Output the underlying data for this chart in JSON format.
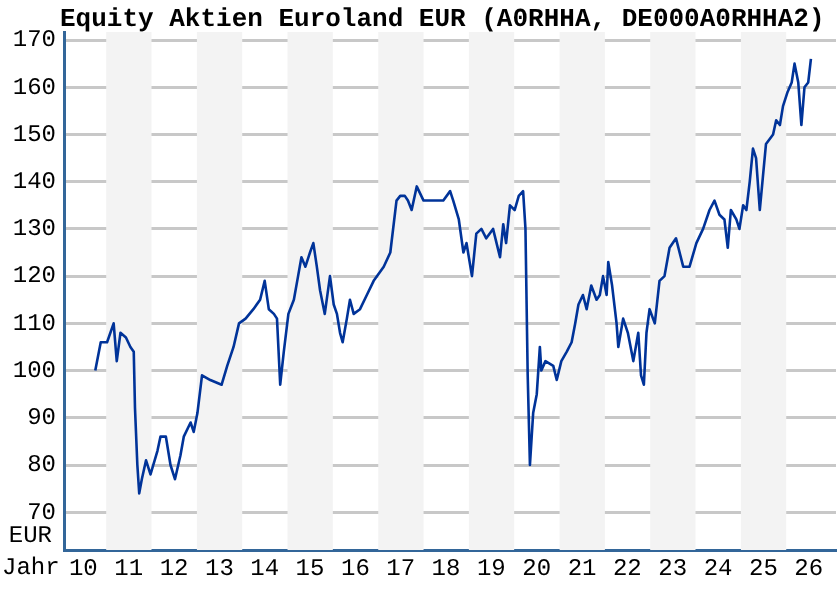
{
  "chart_data": {
    "type": "line",
    "title": "Equity Aktien Euroland EUR (A0RHHA, DE000A0RHHA2)",
    "xlabel": "Jahr",
    "ylabel": "EUR",
    "xlim": [
      "2010-01-26",
      "2027-02-06"
    ],
    "ylim": [
      62,
      171.7
    ],
    "xticks": [
      {
        "value": "2010-07-01",
        "label": "10"
      },
      {
        "value": "2011-07-01",
        "label": "11"
      },
      {
        "value": "2012-07-01",
        "label": "12"
      },
      {
        "value": "2013-07-01",
        "label": "13"
      },
      {
        "value": "2014-07-01",
        "label": "14"
      },
      {
        "value": "2015-07-01",
        "label": "15"
      },
      {
        "value": "2016-07-01",
        "label": "16"
      },
      {
        "value": "2017-07-01",
        "label": "17"
      },
      {
        "value": "2018-07-01",
        "label": "18"
      },
      {
        "value": "2019-07-01",
        "label": "19"
      },
      {
        "value": "2020-07-01",
        "label": "20"
      },
      {
        "value": "2021-07-01",
        "label": "21"
      },
      {
        "value": "2022-07-01",
        "label": "22"
      },
      {
        "value": "2023-07-01",
        "label": "23"
      },
      {
        "value": "2024-07-01",
        "label": "24"
      },
      {
        "value": "2025-07-01",
        "label": "25"
      },
      {
        "value": "2026-07-01",
        "label": "26"
      }
    ],
    "yticks": [
      70,
      80,
      90,
      100,
      110,
      120,
      130,
      140,
      150,
      160,
      170
    ],
    "grid": "y",
    "legend": false,
    "marker": "none",
    "line_style": "solid",
    "bands": [
      {
        "axis": "x",
        "from": "2011-01-01",
        "to": "2012-01-01",
        "color": "#f3f3f3"
      },
      {
        "axis": "x",
        "from": "2013-01-01",
        "to": "2014-01-01",
        "color": "#f3f3f3"
      },
      {
        "axis": "x",
        "from": "2015-01-01",
        "to": "2016-01-01",
        "color": "#f3f3f3"
      },
      {
        "axis": "x",
        "from": "2017-01-01",
        "to": "2018-01-01",
        "color": "#f3f3f3"
      },
      {
        "axis": "x",
        "from": "2019-01-01",
        "to": "2020-01-01",
        "color": "#f3f3f3"
      },
      {
        "axis": "x",
        "from": "2021-01-01",
        "to": "2022-01-01",
        "color": "#f3f3f3"
      },
      {
        "axis": "x",
        "from": "2023-01-01",
        "to": "2024-01-01",
        "color": "#f3f3f3"
      },
      {
        "axis": "x",
        "from": "2025-01-01",
        "to": "2026-01-01",
        "color": "#f3f3f3"
      }
    ],
    "series": [
      {
        "color": "#003399",
        "x": [
          "2010-10-05",
          "2010-11-18",
          "2011-01-08",
          "2011-03-02",
          "2011-03-27",
          "2011-04-26",
          "2011-06-09",
          "2011-07-15",
          "2011-08-11",
          "2011-08-21",
          "2011-09-09",
          "2011-09-24",
          "2011-10-15",
          "2011-11-18",
          "2011-12-24",
          "2012-02-18",
          "2012-03-13",
          "2012-04-26",
          "2012-06-02",
          "2012-07-08",
          "2012-08-21",
          "2012-09-17",
          "2012-11-11",
          "2012-12-06",
          "2013-01-05",
          "2013-02-11",
          "2013-04-19",
          "2013-07-19",
          "2013-09-02",
          "2013-10-23",
          "2013-12-06",
          "2014-01-28",
          "2014-04-01",
          "2014-05-25",
          "2014-07-01",
          "2014-08-03",
          "2014-09-13",
          "2014-10-08",
          "2014-11-03",
          "2014-12-02",
          "2015-01-08",
          "2015-02-21",
          "2015-03-27",
          "2015-04-23",
          "2015-05-25",
          "2015-07-01",
          "2015-07-28",
          "2015-08-25",
          "2015-09-20",
          "2015-10-28",
          "2015-12-09",
          "2016-01-08",
          "2016-02-03",
          "2016-02-28",
          "2016-03-20",
          "2016-04-23",
          "2016-05-18",
          "2016-06-17",
          "2016-08-07",
          "2016-10-01",
          "2016-11-25",
          "2017-02-14",
          "2017-04-08",
          "2017-05-28",
          "2017-06-27",
          "2017-08-03",
          "2017-08-28",
          "2017-09-27",
          "2017-11-07",
          "2018-01-01",
          "2018-03-20",
          "2018-06-09",
          "2018-08-03",
          "2018-08-28",
          "2018-10-12",
          "2018-11-18",
          "2018-12-13",
          "2019-01-26",
          "2019-03-02",
          "2019-04-12",
          "2019-05-21",
          "2019-07-15",
          "2019-09-09",
          "2019-10-05",
          "2019-10-28",
          "2019-11-28",
          "2020-01-05",
          "2020-02-07",
          "2020-03-13",
          "2020-04-01",
          "2020-04-19",
          "2020-05-07",
          "2020-06-02",
          "2020-07-01",
          "2020-07-26",
          "2020-08-07",
          "2020-09-09",
          "2020-11-11",
          "2020-12-09",
          "2021-01-15",
          "2021-02-28",
          "2021-04-08",
          "2021-05-07",
          "2021-06-02",
          "2021-07-08",
          "2021-08-07",
          "2021-09-13",
          "2021-10-26",
          "2021-11-21",
          "2021-12-17",
          "2022-01-15",
          "2022-01-28",
          "2022-02-28",
          "2022-04-05",
          "2022-04-19",
          "2022-05-28",
          "2022-07-05",
          "2022-08-18",
          "2022-09-27",
          "2022-10-19",
          "2022-11-11",
          "2022-12-02",
          "2022-12-27",
          "2023-02-07",
          "2023-03-17",
          "2023-04-26",
          "2023-06-06",
          "2023-07-28",
          "2023-09-24",
          "2023-11-14",
          "2024-01-08",
          "2024-03-02",
          "2024-04-23",
          "2024-06-02",
          "2024-07-12",
          "2024-08-21",
          "2024-09-17",
          "2024-10-12",
          "2024-11-25",
          "2024-12-20",
          "2025-01-19",
          "2025-02-14",
          "2025-03-13",
          "2025-04-08",
          "2025-05-03",
          "2025-06-02",
          "2025-06-27",
          "2025-07-22",
          "2025-09-17",
          "2025-10-12",
          "2025-11-11",
          "2025-12-06",
          "2026-01-12",
          "2026-02-14",
          "2026-03-09",
          "2026-04-08",
          "2026-05-03",
          "2026-05-28",
          "2026-06-27",
          "2026-07-19"
        ],
        "values": [
          100,
          106,
          106,
          110,
          102,
          108,
          107,
          105,
          104,
          92,
          80,
          74,
          77,
          81,
          78,
          83,
          86,
          86,
          80,
          77,
          82,
          86,
          89,
          87,
          91,
          99,
          98,
          97,
          101,
          105,
          110,
          111,
          113,
          115,
          119,
          113,
          112,
          111,
          97,
          104,
          112,
          115,
          120,
          124,
          122,
          125,
          127,
          122,
          117,
          112,
          120,
          114,
          112,
          108,
          106,
          111,
          115,
          112,
          113,
          116,
          119,
          122,
          125,
          136,
          137,
          137,
          136,
          134,
          139,
          136,
          136,
          136,
          138,
          136,
          132,
          125,
          127,
          120,
          129,
          130,
          128,
          130,
          124,
          131,
          127,
          135,
          134,
          137,
          138,
          130,
          99,
          80,
          91,
          95,
          105,
          100,
          102,
          101,
          98,
          102,
          104,
          106,
          110,
          114,
          116,
          113,
          118,
          115,
          116,
          120,
          116,
          123,
          118,
          110,
          105,
          111,
          108,
          102,
          108,
          99,
          97,
          108,
          113,
          110,
          119,
          120,
          126,
          128,
          122,
          122,
          127,
          130,
          134,
          136,
          133,
          132,
          126,
          134,
          132,
          130,
          135,
          134,
          140,
          147,
          145,
          134,
          141,
          148,
          150,
          153,
          152,
          156,
          159,
          161,
          165,
          161,
          152,
          160,
          161,
          166
        ]
      }
    ]
  }
}
